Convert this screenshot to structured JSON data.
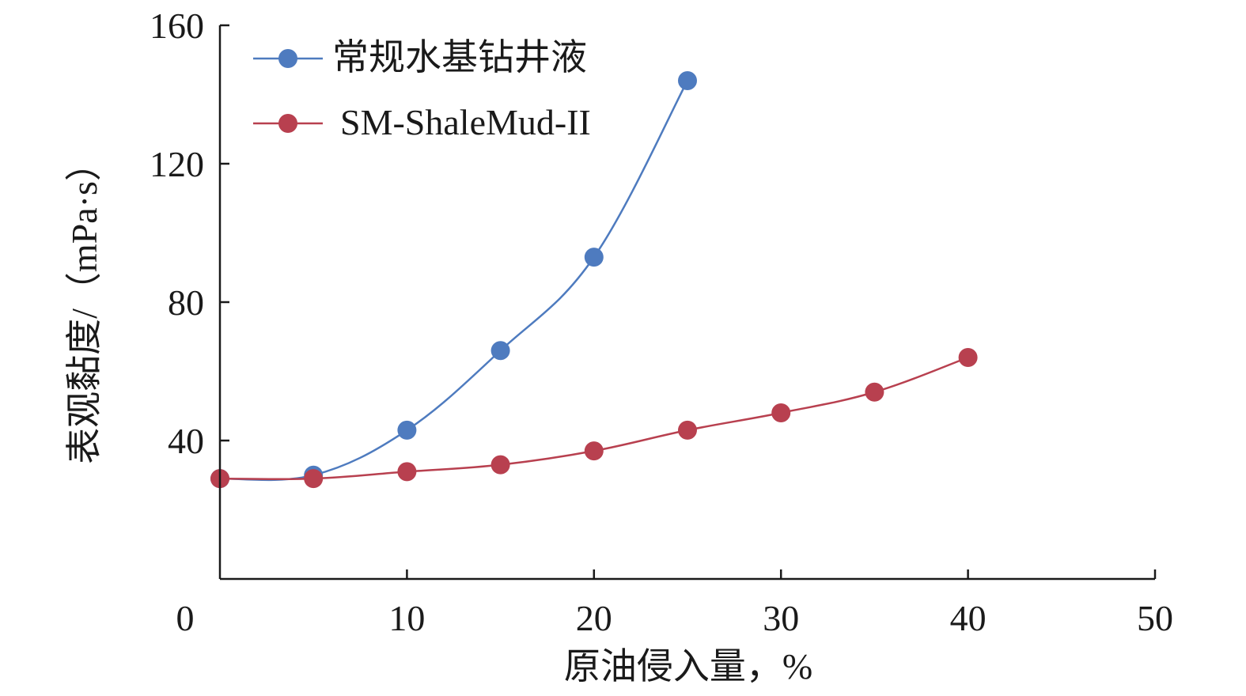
{
  "chart_data": {
    "type": "line",
    "title": "",
    "xlabel": "原油侵入量，%",
    "ylabel": "表观黏度/（mPa·s）",
    "xlim": [
      0,
      50
    ],
    "ylim": [
      0,
      160
    ],
    "x_ticks": [
      0,
      10,
      20,
      30,
      40,
      50
    ],
    "y_ticks": [
      40,
      80,
      120,
      160
    ],
    "grid": false,
    "legend_position": "top-left",
    "smooth": true,
    "series": [
      {
        "name": "常规水基钻井液",
        "color": "#4E7BBF",
        "x": [
          0,
          5,
          10,
          15,
          20,
          25
        ],
        "y": [
          29,
          30,
          43,
          66,
          93,
          144
        ]
      },
      {
        "name": "SM-ShaleMud-II",
        "color": "#B8404F",
        "x": [
          0,
          5,
          10,
          15,
          20,
          25,
          30,
          35,
          40
        ],
        "y": [
          29,
          29,
          31,
          33,
          37,
          43,
          48,
          54,
          64
        ]
      }
    ]
  }
}
